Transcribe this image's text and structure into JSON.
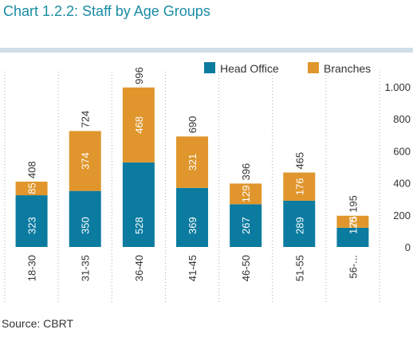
{
  "title": "Chart 1.2.2: Staff by Age Groups",
  "source": "Source: CBRT",
  "colors": {
    "head_office": "#0b7ba0",
    "branches": "#e0962c",
    "band": "#cfdfe8",
    "grid": "#aaaaaa",
    "text": "#333333",
    "white": "#ffffff"
  },
  "chart_data": {
    "type": "bar",
    "stacked": true,
    "categories": [
      "18-30",
      "31-35",
      "36-40",
      "41-45",
      "46-50",
      "51-55",
      "56-..."
    ],
    "series": [
      {
        "name": "Head Office",
        "values": [
          323,
          350,
          528,
          369,
          267,
          289,
          120
        ]
      },
      {
        "name": "Branches",
        "values": [
          85,
          374,
          468,
          321,
          129,
          176,
          75
        ]
      }
    ],
    "totals": [
      408,
      724,
      996,
      690,
      396,
      465,
      195
    ],
    "segment_labels": {
      "head_office": [
        "323",
        "350",
        "528",
        "369",
        "267",
        "289",
        "120"
      ],
      "branches": [
        "85",
        "374",
        "468",
        "321",
        "129",
        "176",
        "75"
      ]
    },
    "total_labels": [
      "408",
      "724",
      "996",
      "690",
      "396",
      "465",
      "195"
    ],
    "yticks": [
      0,
      200,
      400,
      600,
      800,
      1000
    ],
    "ytick_labels": [
      "0",
      "200",
      "400",
      "600",
      "800",
      "1.000"
    ],
    "ylim": [
      0,
      1000
    ],
    "ylabel": "",
    "xlabel": "",
    "legend_position": "top-right",
    "grid": "vertical dotted separators"
  }
}
